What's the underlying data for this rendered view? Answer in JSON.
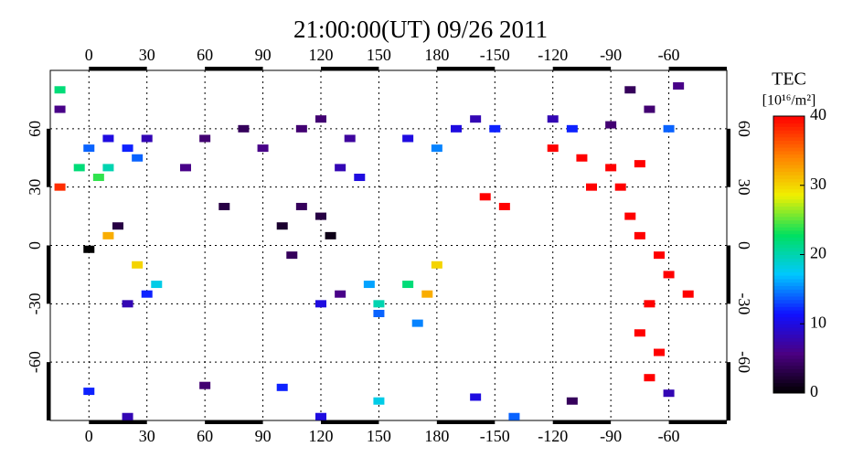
{
  "chart_data": {
    "type": "scatter",
    "title": "21:00:00(UT)  09/26 2011",
    "xlim": [
      -20,
      330
    ],
    "ylim": [
      -90,
      90
    ],
    "xticks": [
      0,
      30,
      60,
      90,
      120,
      150,
      180,
      {
        "value": 210,
        "label": "-150"
      },
      {
        "value": 240,
        "label": "-120"
      },
      {
        "value": 270,
        "label": "-90"
      },
      {
        "value": 300,
        "label": "-60"
      }
    ],
    "yticks": [
      -60,
      -30,
      0,
      30,
      60
    ],
    "grid": true,
    "colorbar": {
      "label": "TEC",
      "units": "[10¹⁶/m²]",
      "lim": [
        0,
        40
      ],
      "ticks": [
        0,
        10,
        20,
        30,
        40
      ],
      "colors": [
        "#000000",
        "#4b0082",
        "#1010ff",
        "#00c8ff",
        "#00e060",
        "#f0f000",
        "#ff8000",
        "#ff0000"
      ]
    },
    "points": {
      "x": [
        10,
        20,
        0,
        30,
        -5,
        10,
        -15,
        5,
        25,
        10,
        0,
        25,
        30,
        20,
        35,
        15,
        50,
        60,
        80,
        90,
        110,
        120,
        130,
        140,
        135,
        100,
        110,
        120,
        70,
        105,
        125,
        120,
        130,
        145,
        150,
        150,
        170,
        175,
        165,
        190,
        200,
        210,
        165,
        180,
        205,
        215,
        180,
        240,
        255,
        270,
        285,
        260,
        275,
        250,
        270,
        290,
        300,
        240,
        280,
        285,
        295,
        300,
        310,
        290,
        285,
        295,
        290,
        0,
        60,
        100,
        150,
        200,
        250,
        300,
        120,
        220,
        20,
        -15,
        -15,
        280,
        305
      ],
      "y": [
        55,
        50,
        50,
        55,
        40,
        40,
        30,
        35,
        45,
        5,
        -2,
        -10,
        -25,
        -30,
        -20,
        10,
        40,
        55,
        60,
        50,
        60,
        65,
        40,
        35,
        55,
        10,
        20,
        15,
        20,
        -5,
        5,
        -30,
        -25,
        -20,
        -30,
        -35,
        -40,
        -25,
        -20,
        60,
        65,
        60,
        55,
        50,
        25,
        20,
        -10,
        50,
        45,
        40,
        42,
        30,
        30,
        60,
        62,
        70,
        60,
        65,
        15,
        5,
        -5,
        -15,
        -25,
        -30,
        -45,
        -55,
        -68,
        -75,
        -72,
        -73,
        -80,
        -78,
        -80,
        -76,
        -88,
        -88,
        -88,
        80,
        70,
        80,
        82
      ],
      "values": [
        10,
        12,
        14,
        8,
        22,
        20,
        38,
        24,
        14,
        32,
        0,
        30,
        12,
        8,
        18,
        3,
        6,
        5,
        4,
        6,
        5,
        5,
        8,
        10,
        7,
        2,
        4,
        3,
        3,
        4,
        1,
        10,
        6,
        16,
        20,
        14,
        15,
        32,
        22,
        10,
        8,
        12,
        10,
        15,
        40,
        40,
        30,
        40,
        40,
        40,
        40,
        40,
        40,
        12,
        5,
        5,
        14,
        8,
        40,
        40,
        40,
        40,
        40,
        40,
        40,
        40,
        40,
        12,
        5,
        12,
        18,
        10,
        4,
        8,
        10,
        14,
        8,
        22,
        6,
        4,
        6
      ]
    }
  }
}
